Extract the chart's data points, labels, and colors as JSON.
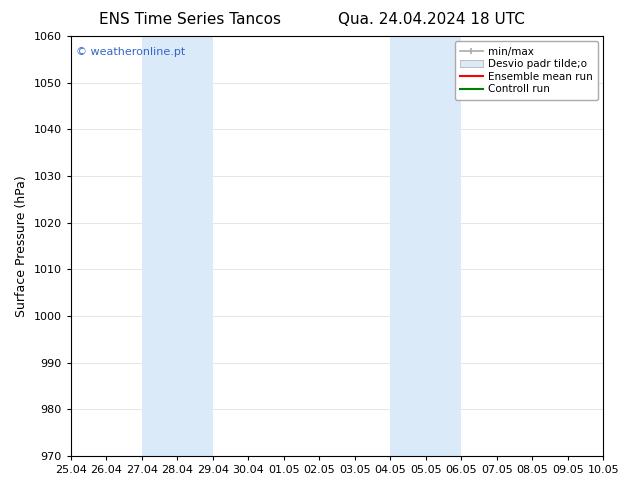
{
  "title_left": "ENS Time Series Tancos",
  "title_right": "Qua. 24.04.2024 18 UTC",
  "ylabel": "Surface Pressure (hPa)",
  "ylim": [
    970,
    1060
  ],
  "yticks": [
    970,
    980,
    990,
    1000,
    1010,
    1020,
    1030,
    1040,
    1050,
    1060
  ],
  "xtick_labels": [
    "25.04",
    "26.04",
    "27.04",
    "28.04",
    "29.04",
    "30.04",
    "01.05",
    "02.05",
    "03.05",
    "04.05",
    "05.05",
    "06.05",
    "07.05",
    "08.05",
    "09.05",
    "10.05"
  ],
  "xlim_start_days": 0,
  "xlim_end_days": 15,
  "shaded_regions": [
    {
      "x_start_days": 2,
      "x_end_days": 4
    },
    {
      "x_start_days": 9,
      "x_end_days": 10
    },
    {
      "x_start_days": 10,
      "x_end_days": 11
    }
  ],
  "shaded_color": "#daeaf8",
  "legend_entries": [
    {
      "label": "min/max",
      "color": "#aaaaaa",
      "type": "line_with_caps"
    },
    {
      "label": "Desvio padr tilde;o",
      "color": "#daeaf8",
      "type": "filled_box"
    },
    {
      "label": "Ensemble mean run",
      "color": "#ff0000",
      "type": "line"
    },
    {
      "label": "Controll run",
      "color": "#008000",
      "type": "line"
    }
  ],
  "watermark": "© weatheronline.pt",
  "watermark_color": "#3366cc",
  "background_color": "#ffffff",
  "plot_bg_color": "#ffffff",
  "title_fontsize": 11,
  "tick_fontsize": 8,
  "ylabel_fontsize": 9,
  "legend_fontsize": 7.5
}
